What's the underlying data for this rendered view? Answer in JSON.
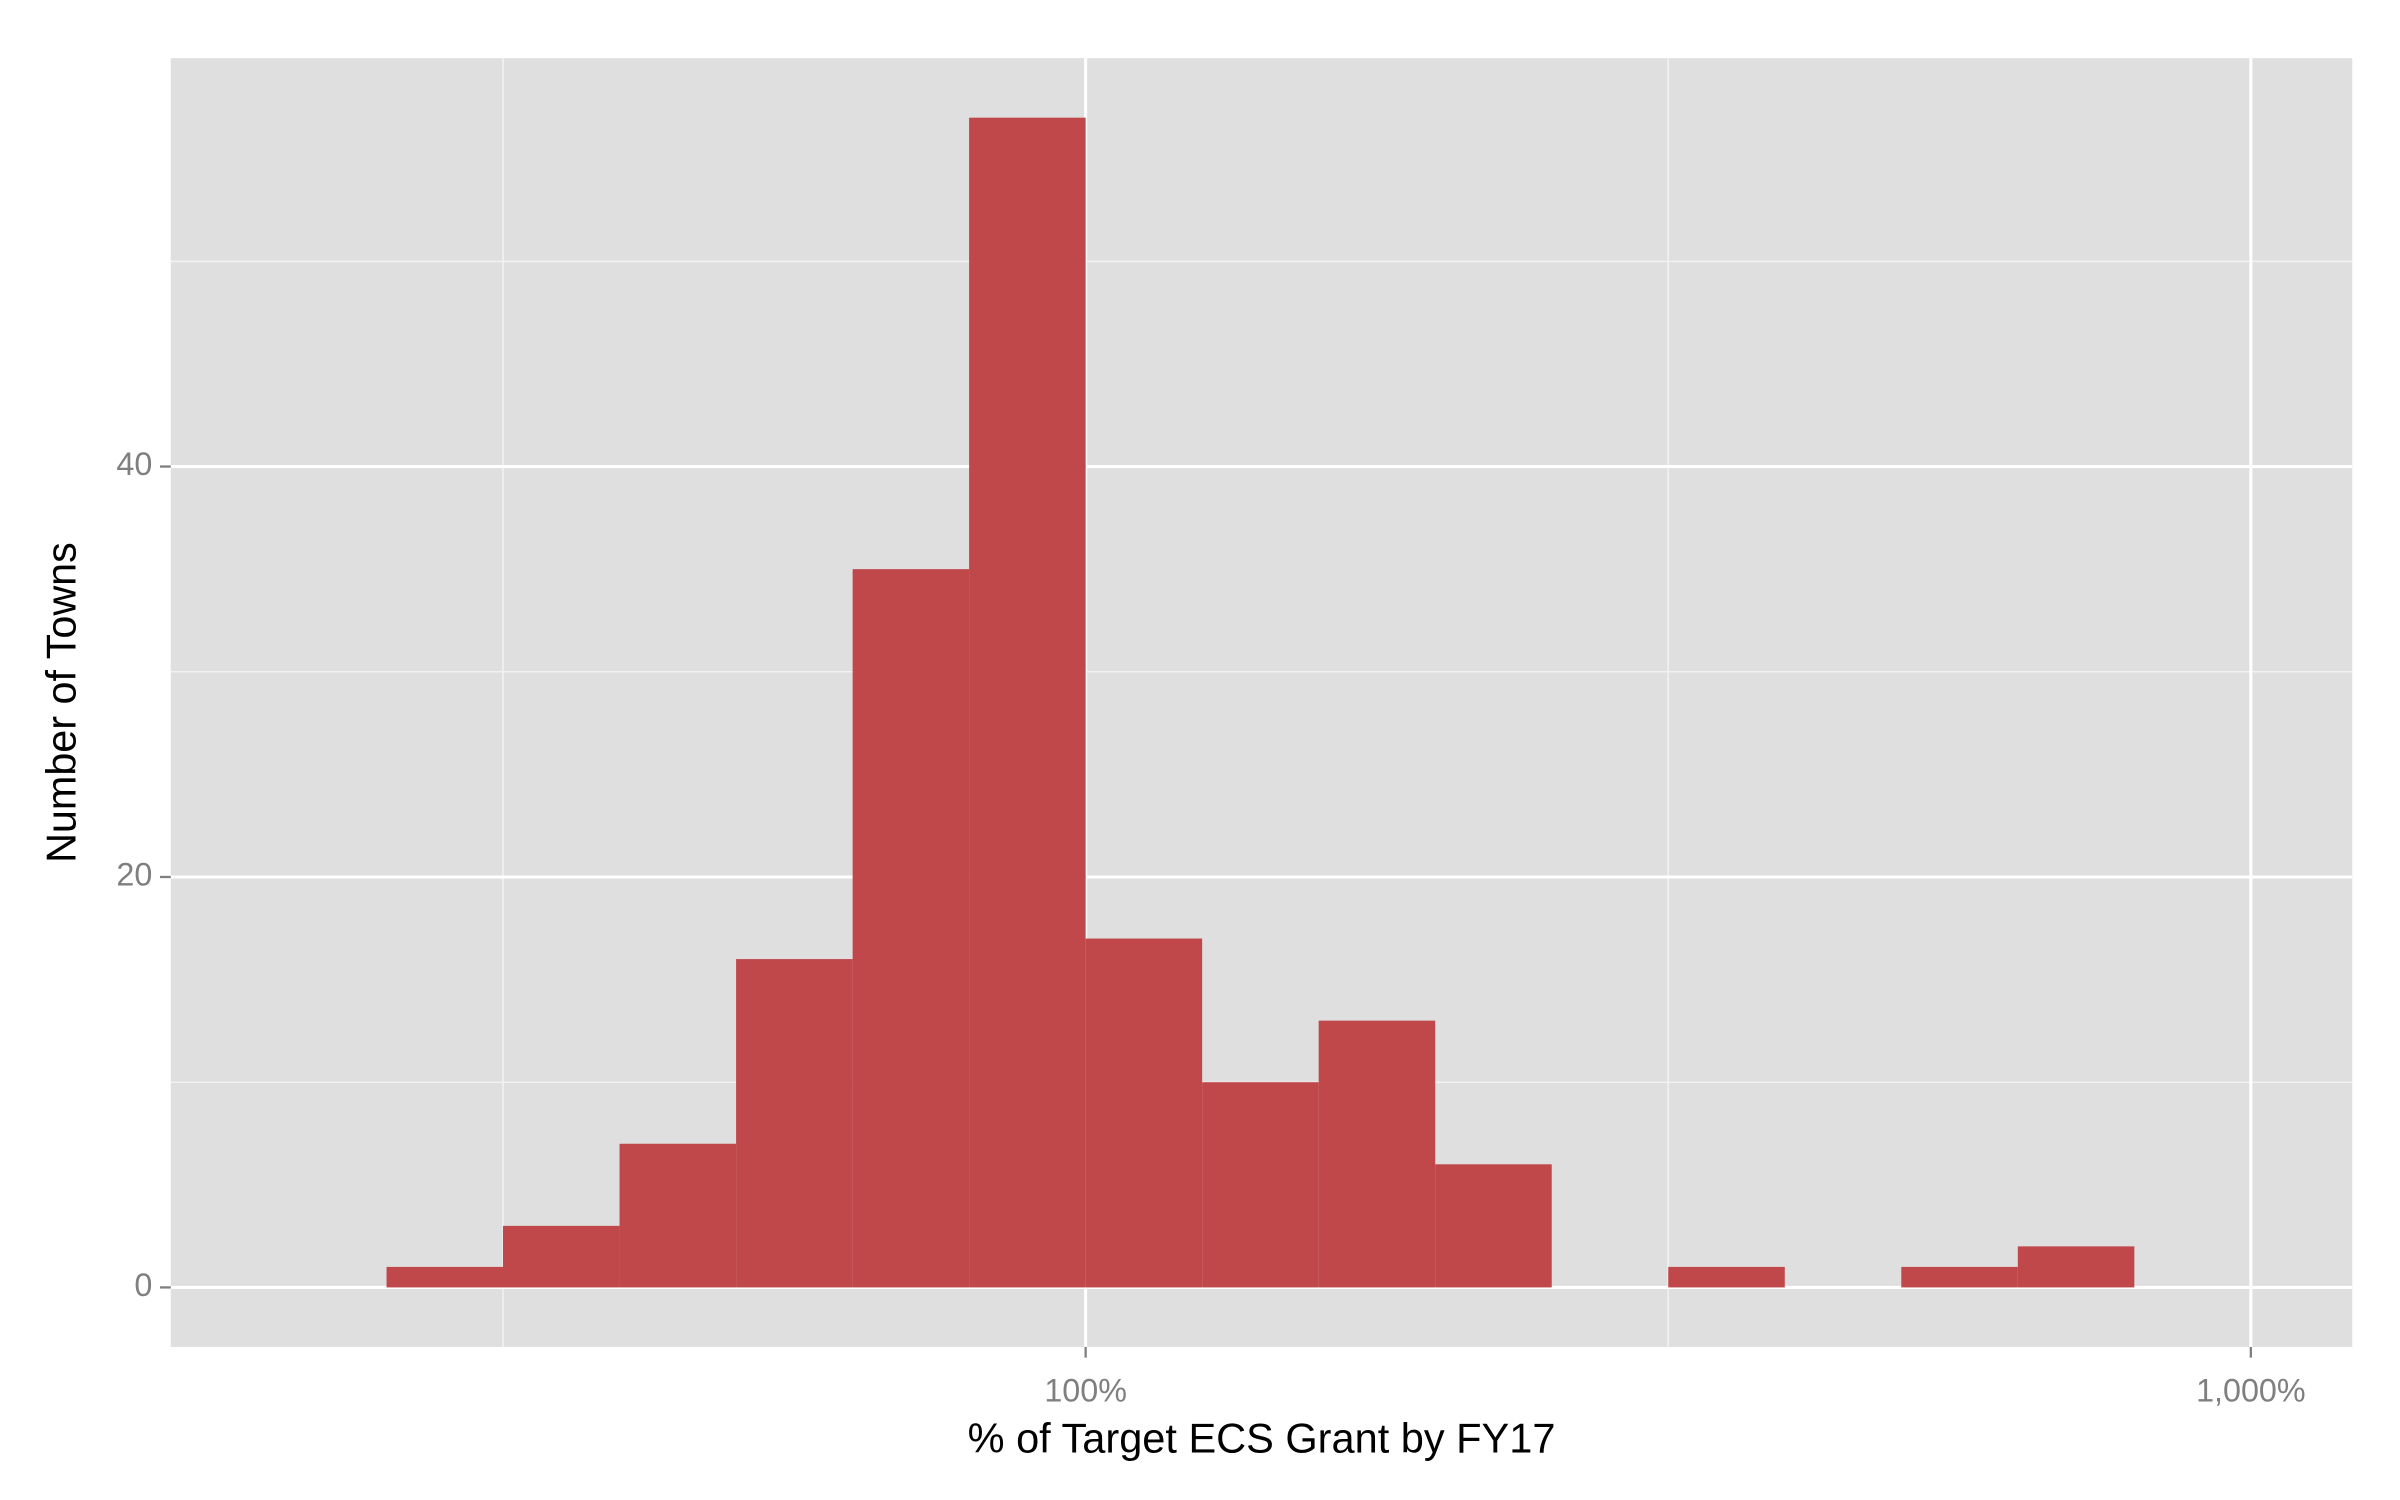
{
  "chart_data": {
    "type": "histogram",
    "x_label": "% of Target ECS Grant by FY17",
    "y_label": "Number of Towns",
    "bins": [
      25.12,
      31.62,
      39.81,
      50.12,
      63.1,
      79.43,
      100,
      125.89,
      158.49,
      199.53,
      251.19,
      316.23,
      398.11,
      501.19,
      630.96,
      794.33
    ],
    "values": [
      1,
      3,
      7,
      16,
      35,
      57,
      17,
      10,
      13,
      6,
      0,
      1,
      0,
      1,
      2
    ],
    "color": "#c0474a",
    "x_log": true,
    "xlim": [
      16.4,
      1222
    ],
    "xticks": [
      {
        "value": 100,
        "label": "100%"
      },
      {
        "value": 1000,
        "label": "1,000%"
      }
    ],
    "x_minor_grid": [
      31.62,
      316.2
    ],
    "ylim": [
      -2.9,
      59.9
    ],
    "yticks": [
      0,
      20,
      40
    ],
    "y_minor_grid": [
      10,
      30,
      50
    ],
    "grid": true
  }
}
